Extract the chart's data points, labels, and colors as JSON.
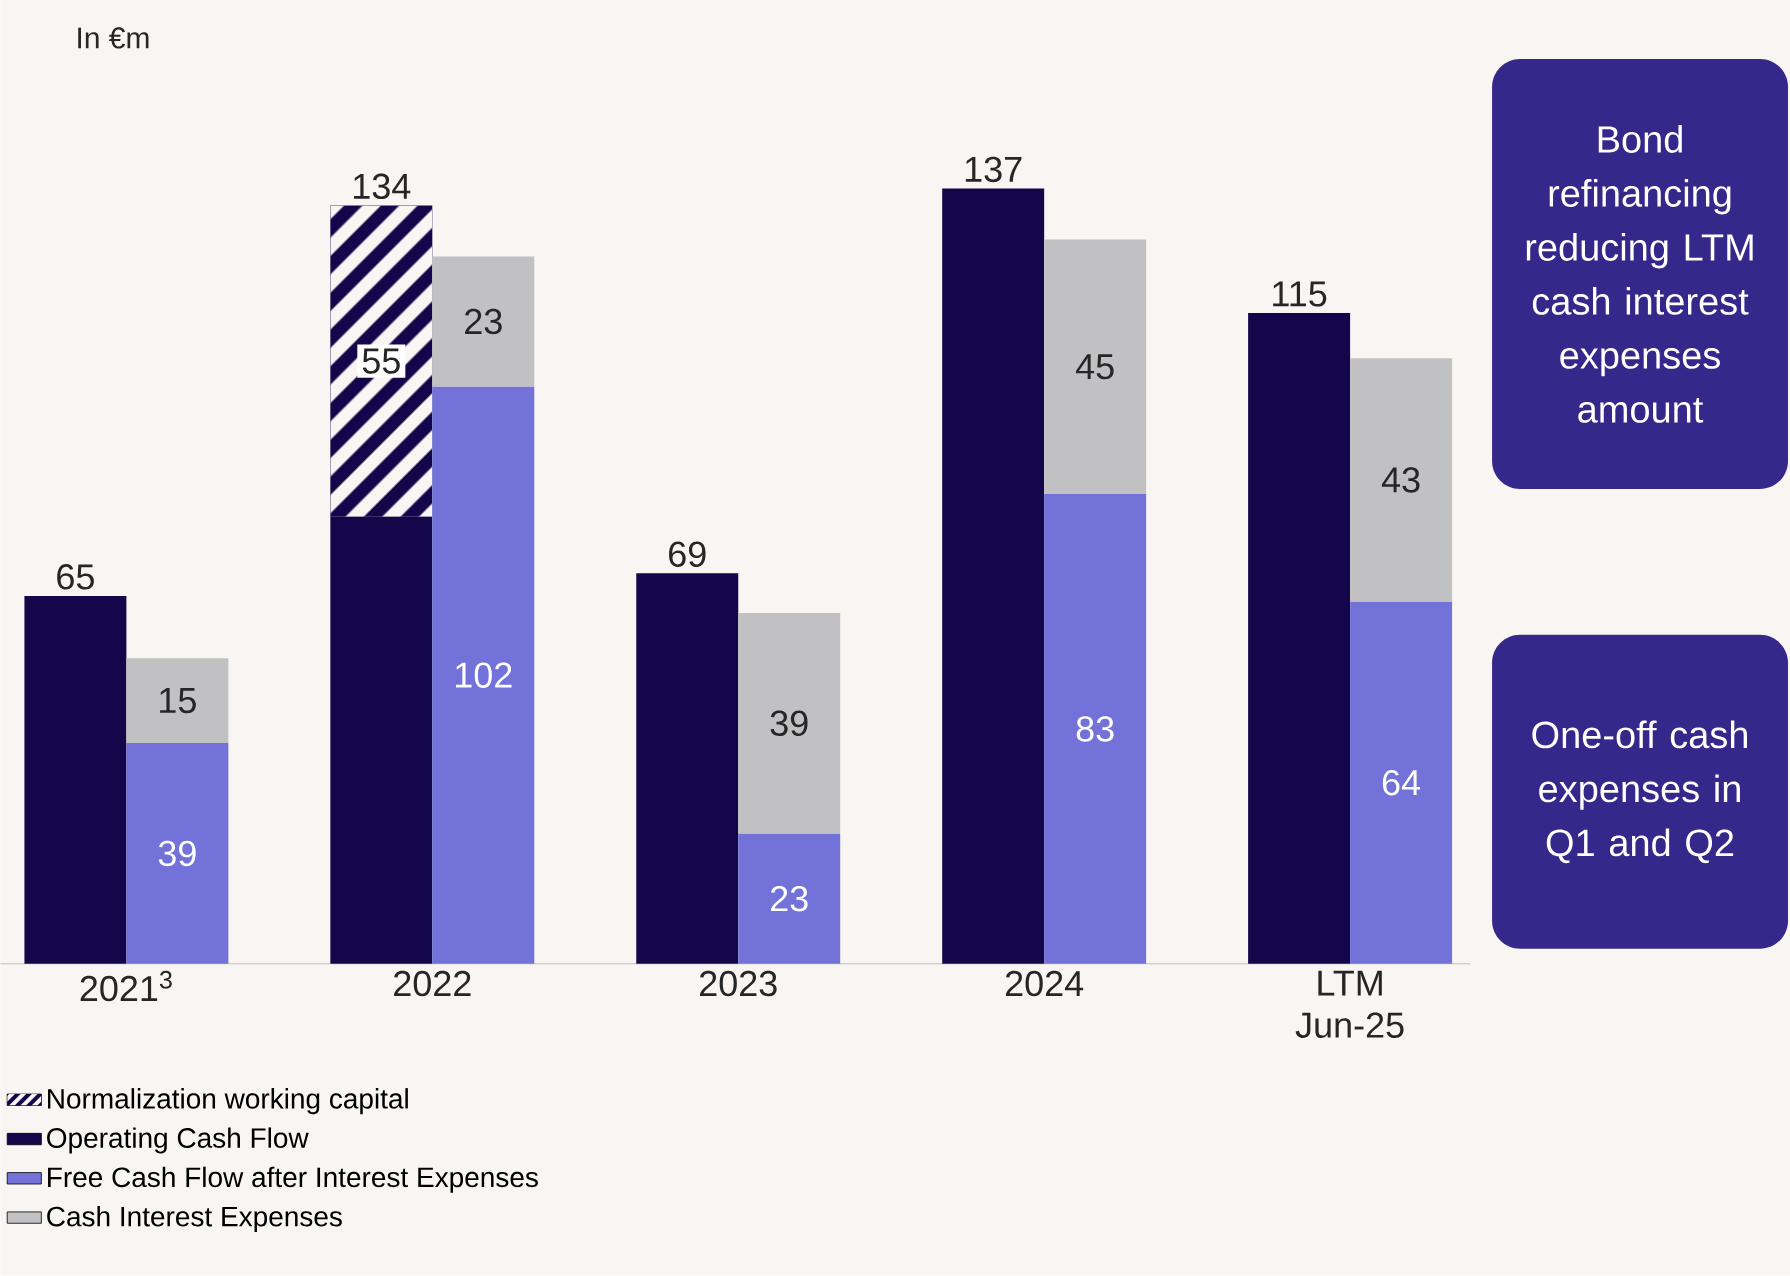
{
  "chart_data": {
    "type": "bar",
    "stacked": true,
    "categories": [
      "2021$^{3}$",
      null,
      null,
      "2022",
      null,
      null,
      "2023",
      null,
      null,
      "2024",
      null,
      null,
      "LTM Jun-25",
      null
    ],
    "series": [
      {
        "name": "Operating Cash Flow",
        "color": "#14064a",
        "values": [
          65,
          null,
          null,
          79,
          null,
          null,
          69,
          null,
          null,
          137,
          null,
          null,
          115,
          null
        ]
      },
      {
        "name": "Normalization working capital",
        "color": "#14064a",
        "values": [
          null,
          null,
          null,
          55,
          null,
          null,
          null,
          null,
          null,
          null,
          null,
          null,
          null,
          null
        ],
        "value_labels": [
          null,
          null,
          null,
          "55",
          null,
          null,
          null,
          null,
          null,
          null,
          null,
          null,
          null,
          null
        ]
      },
      {
        "name": "Free Cash Flow after Interest Expenses",
        "color": "#7272d9",
        "values": [
          null,
          39,
          null,
          null,
          102,
          null,
          null,
          23,
          null,
          null,
          83,
          null,
          null,
          64
        ],
        "value_labels": [
          null,
          "39",
          null,
          null,
          "102",
          null,
          null,
          "23",
          null,
          null,
          "83",
          null,
          null,
          "64"
        ]
      },
      {
        "name": "Cash Interest Expenses",
        "color": "#c1c0c2",
        "values": [
          null,
          15,
          null,
          null,
          23,
          null,
          null,
          39,
          null,
          null,
          45,
          null,
          null,
          43
        ],
        "value_labels": [
          null,
          "15",
          null,
          null,
          "23",
          null,
          null,
          "39",
          null,
          null,
          "45",
          null,
          null,
          "43"
        ]
      }
    ],
    "totals": [
      "65",
      null,
      null,
      "134",
      null,
      null,
      "69",
      null,
      null,
      "137",
      null,
      null,
      "115",
      null
    ],
    "legend": "bottom left",
    "annotations": [
      "In €m",
      "Bond refinancing reducing LTM cash interest expenses amount",
      "One-off cash expenses in Q1 and Q2"
    ]
  }
}
